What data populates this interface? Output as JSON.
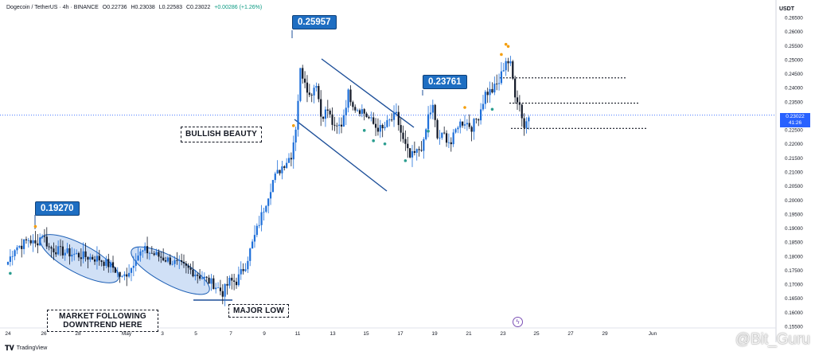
{
  "header": {
    "symbol": "Dogecoin / TetherUS · 4h · BINANCE",
    "open": "O0.22736",
    "high": "H0.23038",
    "low": "L0.22583",
    "close": "C0.23022",
    "change": "+0.00286 (+1.26%)"
  },
  "currency": "USDT",
  "current_price": {
    "value": "0.23022",
    "countdown": "41:26"
  },
  "footer_logo": "TradingView",
  "watermark": "@Bit_Guru",
  "callouts": {
    "c1": "0.19270",
    "c2": "0.25957",
    "c3": "0.23761"
  },
  "annotations": {
    "bullish": "BULLISH BEAUTY",
    "downtrend": "MARKET FOLLOWING DOWNTREND HERE",
    "major_low": "MAJOR LOW"
  },
  "colors": {
    "up": "#1e6fd9",
    "down": "#111827",
    "ellipse_fill": "#bcd3f2",
    "ellipse_stroke": "#1d5fb5",
    "price_line": "#2962ff",
    "marker_orange": "#f59e0b",
    "marker_teal": "#2a9d8f"
  },
  "chart_data": {
    "type": "candlestick",
    "symbol": "DOGE/USDT",
    "timeframe": "4h",
    "ylim": [
      0.155,
      0.265
    ],
    "y_ticks": [
      "0.26500",
      "0.26000",
      "0.25500",
      "0.25000",
      "0.24500",
      "0.24000",
      "0.23500",
      "0.23000",
      "0.22500",
      "0.22000",
      "0.21500",
      "0.21000",
      "0.20500",
      "0.20000",
      "0.19500",
      "0.19000",
      "0.18500",
      "0.18000",
      "0.17500",
      "0.17000",
      "0.16500",
      "0.16000",
      "0.15500"
    ],
    "x_ticks": [
      "24",
      "26",
      "28",
      "May",
      "3",
      "5",
      "7",
      "9",
      "11",
      "13",
      "15",
      "17",
      "19",
      "21",
      "23",
      "25",
      "27",
      "29",
      "Jun"
    ],
    "keypoints": [
      [
        0,
        0.178
      ],
      [
        3,
        0.183
      ],
      [
        6,
        0.184
      ],
      [
        9,
        0.186
      ],
      [
        12,
        0.184
      ],
      [
        15,
        0.188
      ],
      [
        18,
        0.183
      ],
      [
        22,
        0.182
      ],
      [
        27,
        0.181
      ],
      [
        33,
        0.18
      ],
      [
        40,
        0.179
      ],
      [
        46,
        0.176
      ],
      [
        50,
        0.172
      ],
      [
        54,
        0.176
      ],
      [
        56,
        0.18
      ],
      [
        60,
        0.182
      ],
      [
        66,
        0.18
      ],
      [
        72,
        0.178
      ],
      [
        80,
        0.175
      ],
      [
        86,
        0.172
      ],
      [
        90,
        0.17
      ],
      [
        94,
        0.167
      ],
      [
        97,
        0.171
      ],
      [
        100,
        0.171
      ],
      [
        104,
        0.177
      ],
      [
        108,
        0.187
      ],
      [
        112,
        0.197
      ],
      [
        116,
        0.207
      ],
      [
        120,
        0.212
      ],
      [
        124,
        0.216
      ],
      [
        126,
        0.226
      ],
      [
        128,
        0.246
      ],
      [
        130,
        0.243
      ],
      [
        132,
        0.237
      ],
      [
        135,
        0.242
      ],
      [
        137,
        0.23
      ],
      [
        140,
        0.232
      ],
      [
        143,
        0.225
      ],
      [
        146,
        0.227
      ],
      [
        149,
        0.238
      ],
      [
        152,
        0.233
      ],
      [
        155,
        0.232
      ],
      [
        158,
        0.229
      ],
      [
        161,
        0.226
      ],
      [
        164,
        0.225
      ],
      [
        167,
        0.228
      ],
      [
        170,
        0.23
      ],
      [
        173,
        0.221
      ],
      [
        176,
        0.215
      ],
      [
        179,
        0.217
      ],
      [
        182,
        0.22
      ],
      [
        184,
        0.23
      ],
      [
        186,
        0.233
      ],
      [
        188,
        0.222
      ],
      [
        191,
        0.223
      ],
      [
        194,
        0.22
      ],
      [
        197,
        0.227
      ],
      [
        200,
        0.228
      ],
      [
        203,
        0.226
      ],
      [
        206,
        0.23
      ],
      [
        209,
        0.238
      ],
      [
        212,
        0.239
      ],
      [
        215,
        0.242
      ],
      [
        218,
        0.25
      ],
      [
        220,
        0.248
      ],
      [
        222,
        0.238
      ],
      [
        224,
        0.234
      ],
      [
        226,
        0.226
      ],
      [
        228,
        0.23
      ]
    ],
    "levels": [
      0.2435,
      0.2345,
      0.2255
    ],
    "current_price": 0.23022
  }
}
